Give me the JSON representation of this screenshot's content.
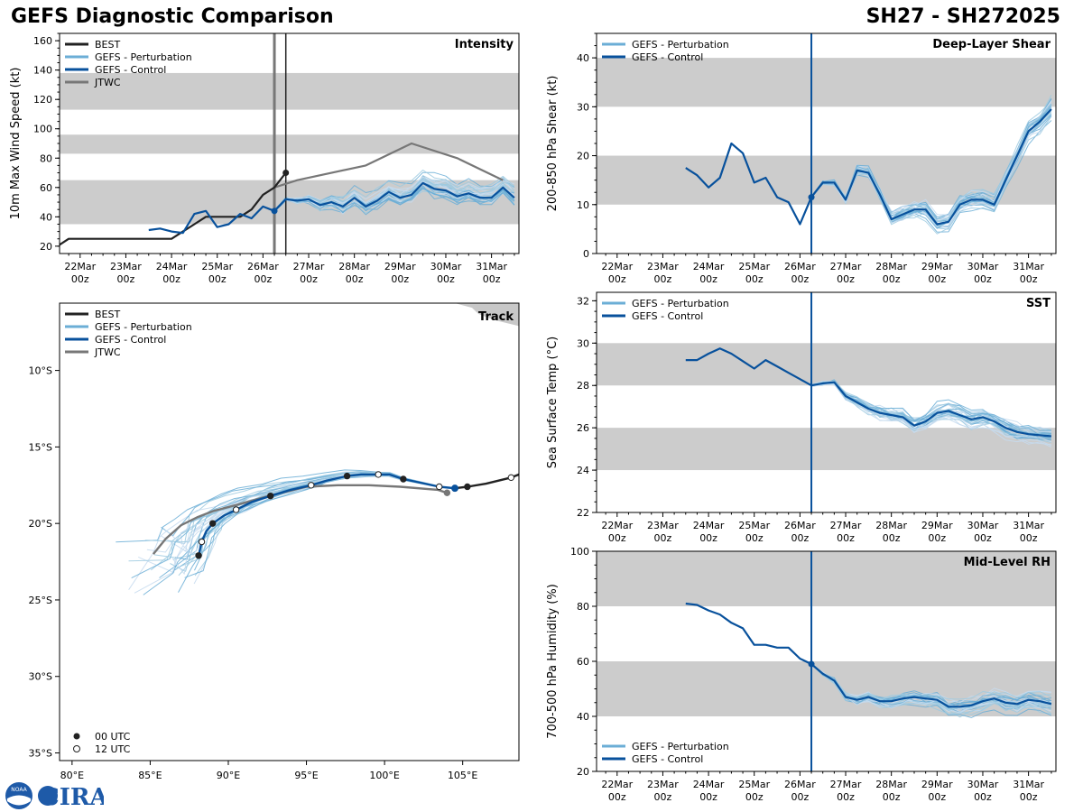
{
  "header": {
    "title": "GEFS Diagnostic Comparison",
    "storm_id": "SH27 - SH272025"
  },
  "legend_labels": {
    "best": "BEST",
    "perturbation": "GEFS - Perturbation",
    "control": "GEFS - Control",
    "jtwc": "JTWC",
    "utc00": "00 UTC",
    "utc12": "12 UTC"
  },
  "colors": {
    "best": "#222222",
    "perturbation": "#6baed6",
    "control": "#08519c",
    "jtwc": "#777777",
    "band": "#cccccc",
    "land": "#c8c8c8"
  },
  "time_axis": {
    "start": "22Mar",
    "dates": [
      "22Mar",
      "23Mar",
      "24Mar",
      "25Mar",
      "26Mar",
      "27Mar",
      "28Mar",
      "29Mar",
      "30Mar",
      "31Mar"
    ],
    "hour_label": "00z",
    "range_days": [
      -0.45,
      9.6
    ]
  },
  "logo": {
    "text": "CIRA",
    "agency": "NOAA"
  },
  "chart_data": [
    {
      "id": "intensity",
      "type": "line",
      "panel_title": "Intensity",
      "ylabel": "10m Max Wind Speed (kt)",
      "ylim": [
        15,
        165
      ],
      "yticks": [
        20,
        40,
        60,
        80,
        100,
        120,
        140,
        160
      ],
      "bands": [
        [
          35,
          65
        ],
        [
          83,
          96
        ],
        [
          113,
          138
        ]
      ],
      "vlines": [
        {
          "t": 4.25,
          "color_key": "jtwc",
          "width": 3
        },
        {
          "t": 4.5,
          "color_key": "best",
          "width": 1.5
        }
      ],
      "best": {
        "t": [
          -0.5,
          -0.25,
          0,
          0.25,
          0.5,
          0.75,
          1,
          1.25,
          1.5,
          1.75,
          2,
          2.25,
          2.5,
          2.75,
          3,
          3.25,
          3.5,
          3.75,
          4,
          4.25,
          4.5
        ],
        "v": [
          20,
          25,
          25,
          25,
          25,
          25,
          25,
          25,
          25,
          25,
          25,
          30,
          35,
          40,
          40,
          40,
          40,
          45,
          55,
          60,
          70
        ]
      },
      "jtwc": {
        "t": [
          4.25,
          4.75,
          6.25,
          7.25,
          8.25,
          9.25
        ],
        "v": [
          60,
          65,
          75,
          90,
          80,
          65
        ]
      },
      "control": {
        "t": [
          1.5,
          1.75,
          2,
          2.25,
          2.5,
          2.75,
          3,
          3.25,
          3.5,
          3.75,
          4,
          4.25,
          4.5,
          4.75,
          5,
          5.25,
          5.5,
          5.75,
          6,
          6.25,
          6.5,
          6.75,
          7,
          7.25,
          7.5,
          7.75,
          8,
          8.25,
          8.5,
          8.75,
          9,
          9.25,
          9.5
        ],
        "v": [
          31,
          32,
          30,
          29,
          42,
          44,
          33,
          35,
          42,
          39,
          47,
          44,
          52,
          51,
          52,
          48,
          50,
          47,
          53,
          47,
          51,
          57,
          53,
          55,
          63,
          59,
          58,
          54,
          56,
          53,
          53,
          60,
          53
        ]
      },
      "marker_best": {
        "t": 4.5,
        "v": 70
      },
      "marker_control": {
        "t": 4.25,
        "v": 44
      }
    },
    {
      "id": "track",
      "type": "line",
      "panel_title": "Track",
      "xticks": [
        80,
        85,
        90,
        95,
        100,
        105
      ],
      "xtick_labels": [
        "80°E",
        "85°E",
        "90°E",
        "95°E",
        "100°E",
        "105°E"
      ],
      "yticks": [
        -10,
        -15,
        -20,
        -25,
        -30,
        -35
      ],
      "ytick_labels": [
        "10°S",
        "15°S",
        "20°S",
        "25°S",
        "30°S",
        "35°S"
      ],
      "xlim": [
        79.2,
        108.6
      ],
      "ylim": [
        -35.5,
        -5.6
      ],
      "best": {
        "lon": [
          108.6,
          108.1,
          106.5,
          105.3,
          104.5
        ],
        "lat": [
          -16.8,
          -17.0,
          -17.4,
          -17.6,
          -17.7
        ]
      },
      "best_00": {
        "lon": [
          105.3
        ],
        "lat": [
          -17.6
        ]
      },
      "best_12": {
        "lon": [
          108.1
        ],
        "lat": [
          -17.0
        ]
      },
      "jtwc": {
        "lon": [
          104.0,
          103.4,
          101.0,
          99.0,
          97.0,
          95.0,
          92.6,
          90.5,
          89.0,
          88.0,
          87.0,
          86.0,
          85.2
        ],
        "lat": [
          -18.0,
          -17.8,
          -17.6,
          -17.5,
          -17.5,
          -17.6,
          -18.2,
          -18.8,
          -19.2,
          -19.6,
          -20.1,
          -21.0,
          -22.0
        ]
      },
      "jtwc_00": {
        "lon": [
          104.0
        ],
        "lat": [
          -18.0
        ]
      },
      "control": {
        "lon": [
          104.5,
          103.5,
          101.2,
          100.3,
          99.6,
          98.5,
          97.6,
          96.3,
          95.3,
          94.0,
          92.7,
          91.5,
          90.5,
          89.7,
          89.0,
          88.6,
          88.3,
          88.1
        ],
        "lat": [
          -17.7,
          -17.6,
          -17.1,
          -16.8,
          -16.8,
          -16.8,
          -16.9,
          -17.2,
          -17.5,
          -17.8,
          -18.2,
          -18.6,
          -19.1,
          -19.5,
          -20.0,
          -20.5,
          -21.2,
          -22.1
        ]
      },
      "control_00": {
        "lon": [
          101.2,
          97.6,
          92.7,
          89.0,
          88.1
        ],
        "lat": [
          -17.1,
          -16.9,
          -18.2,
          -20.0,
          -22.1
        ]
      },
      "control_12": {
        "lon": [
          103.5,
          99.6,
          95.3,
          90.5,
          88.3
        ],
        "lat": [
          -17.6,
          -16.8,
          -17.5,
          -19.1,
          -21.2
        ]
      }
    },
    {
      "id": "shear",
      "type": "line",
      "panel_title": "Deep-Layer Shear",
      "ylabel": "200-850 hPa Shear (kt)",
      "ylim": [
        0,
        45
      ],
      "yticks": [
        0,
        10,
        20,
        30,
        40
      ],
      "bands": [
        [
          10,
          20
        ],
        [
          30,
          40
        ]
      ],
      "vlines": [
        {
          "t": 4.25,
          "color_key": "control",
          "width": 2
        }
      ],
      "control": {
        "t": [
          1.5,
          1.75,
          2,
          2.25,
          2.5,
          2.75,
          3,
          3.25,
          3.5,
          3.75,
          4,
          4.25,
          4.5,
          4.75,
          5,
          5.25,
          5.5,
          5.75,
          6,
          6.25,
          6.5,
          6.75,
          7,
          7.25,
          7.5,
          7.75,
          8,
          8.25,
          8.5,
          8.75,
          9,
          9.25,
          9.5
        ],
        "v": [
          17.5,
          16,
          13.5,
          15.5,
          22.5,
          20.5,
          14.5,
          15.5,
          11.5,
          10.5,
          6,
          11.5,
          14.5,
          14.5,
          11,
          17,
          16.5,
          12,
          7,
          8,
          9,
          9,
          6,
          6.5,
          10,
          11,
          11,
          10,
          15,
          20,
          25,
          27,
          29.5
        ]
      },
      "marker_control": {
        "t": 4.25,
        "v": 11.5
      }
    },
    {
      "id": "sst",
      "type": "line",
      "panel_title": "SST",
      "ylabel": "Sea Surface Temp (°C)",
      "ylim": [
        22,
        32.4
      ],
      "yticks": [
        22,
        24,
        26,
        28,
        30,
        32
      ],
      "bands": [
        [
          24,
          26
        ],
        [
          28,
          30
        ]
      ],
      "vlines": [
        {
          "t": 4.25,
          "color_key": "control",
          "width": 2
        }
      ],
      "control": {
        "t": [
          1.5,
          1.75,
          2,
          2.25,
          2.5,
          2.75,
          3,
          3.25,
          3.5,
          3.75,
          4,
          4.25,
          4.5,
          4.75,
          5,
          5.25,
          5.5,
          5.75,
          6,
          6.25,
          6.5,
          6.75,
          7,
          7.25,
          7.5,
          7.75,
          8,
          8.25,
          8.5,
          8.75,
          9,
          9.25,
          9.5
        ],
        "v": [
          29.2,
          29.2,
          29.5,
          29.75,
          29.5,
          29.15,
          28.8,
          29.2,
          28.9,
          28.6,
          28.3,
          28.0,
          28.1,
          28.15,
          27.5,
          27.2,
          26.9,
          26.7,
          26.6,
          26.5,
          26.1,
          26.3,
          26.7,
          26.8,
          26.6,
          26.4,
          26.5,
          26.3,
          26.0,
          25.8,
          25.7,
          25.65,
          25.6
        ]
      }
    },
    {
      "id": "rh",
      "type": "line",
      "panel_title": "Mid-Level RH",
      "ylabel": "700-500 hPa Humidity (%)",
      "ylim": [
        20,
        100
      ],
      "yticks": [
        20,
        40,
        60,
        80,
        100
      ],
      "bands": [
        [
          40,
          60
        ],
        [
          80,
          100
        ]
      ],
      "vlines": [
        {
          "t": 4.25,
          "color_key": "control",
          "width": 2
        }
      ],
      "control": {
        "t": [
          1.5,
          1.75,
          2,
          2.25,
          2.5,
          2.75,
          3,
          3.25,
          3.5,
          3.75,
          4,
          4.25,
          4.5,
          4.75,
          5,
          5.25,
          5.5,
          5.75,
          6,
          6.25,
          6.5,
          6.75,
          7,
          7.25,
          7.5,
          7.75,
          8,
          8.25,
          8.5,
          8.75,
          9,
          9.25,
          9.5
        ],
        "v": [
          81,
          80.5,
          78.5,
          77,
          74,
          72,
          66,
          66,
          65,
          65,
          61,
          59,
          55.5,
          53,
          47,
          46,
          47,
          45.5,
          45.5,
          46.5,
          47,
          46.5,
          46,
          43.5,
          43.5,
          44,
          45.5,
          46.5,
          45,
          44.5,
          46,
          45.5,
          44.5
        ]
      },
      "marker_control": {
        "t": 4.25,
        "v": 59
      }
    }
  ]
}
